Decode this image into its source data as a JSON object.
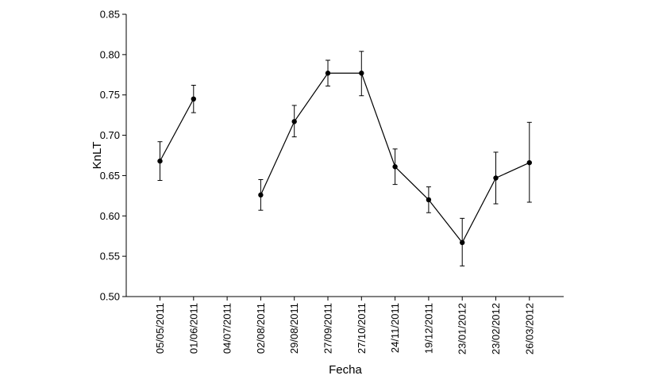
{
  "chart_data": {
    "type": "line",
    "xlabel": "Fecha",
    "ylabel": "KnLT",
    "ylim": [
      0.5,
      0.85
    ],
    "yticks": [
      "0.50",
      "0.55",
      "0.60",
      "0.65",
      "0.70",
      "0.75",
      "0.80",
      "0.85"
    ],
    "categories": [
      "05/05/2011",
      "01/06/2011",
      "04/07/2011",
      "02/08/2011",
      "29/08/2011",
      "27/09/2011",
      "27/10/2011",
      "24/11/2011",
      "19/12/2011",
      "23/01/2012",
      "23/02/2012",
      "26/03/2012"
    ],
    "series": [
      {
        "values": [
          0.668,
          0.745,
          null,
          0.626,
          0.717,
          0.777,
          0.777,
          0.661,
          0.62,
          0.567,
          0.647,
          0.666
        ],
        "error_low": [
          0.644,
          0.728,
          null,
          0.607,
          0.698,
          0.761,
          0.749,
          0.639,
          0.604,
          0.538,
          0.615,
          0.617
        ],
        "error_high": [
          0.692,
          0.762,
          null,
          0.645,
          0.737,
          0.793,
          0.804,
          0.683,
          0.636,
          0.597,
          0.679,
          0.716
        ]
      }
    ],
    "grid": false,
    "colors": {
      "line": "#000000",
      "marker": "#000000"
    }
  }
}
